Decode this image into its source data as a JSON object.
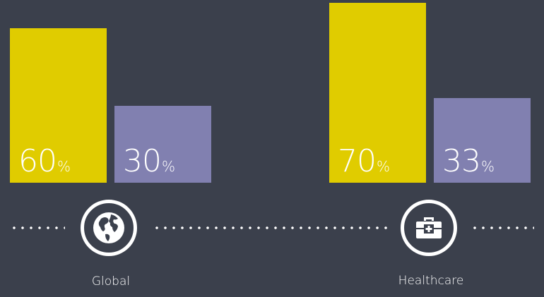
{
  "chart_data": {
    "type": "bar",
    "categories": [
      "Global",
      "Healthcare"
    ],
    "series": [
      {
        "values": [
          60,
          70
        ],
        "color": "#e0cc00"
      },
      {
        "values": [
          30,
          33
        ],
        "color": "#8180b0"
      }
    ],
    "value_suffix": "%",
    "icons": [
      "globe-icon",
      "medical-kit-icon"
    ],
    "title": "",
    "xlabel": "",
    "ylabel": ""
  }
}
